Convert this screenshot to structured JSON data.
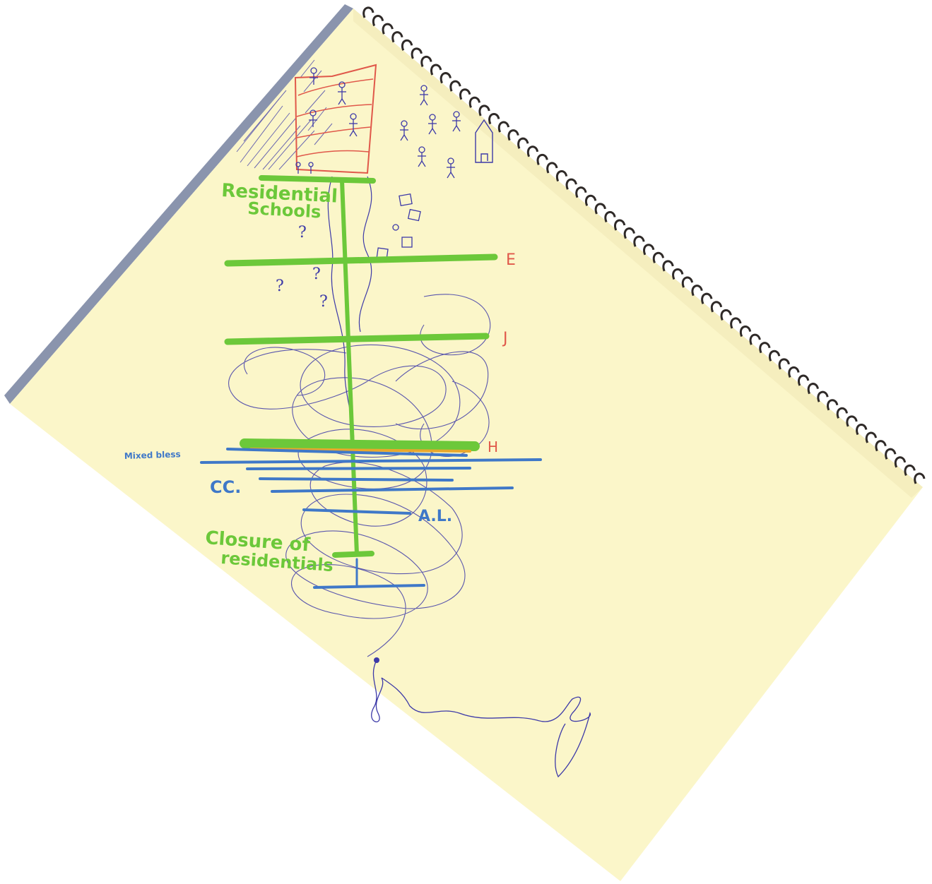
{
  "labels": {
    "residential_line1": "Residential",
    "residential_line2": "Schools",
    "marker_e": "E",
    "marker_j": "J",
    "marker_h": "H",
    "blue_small": "Mixed bless",
    "cc": "CC.",
    "al": "A.L.",
    "closure_line1": "Closure   of",
    "closure_line2": "residentials",
    "question_mark": "?"
  },
  "colors": {
    "paper": "#fbf6c9",
    "page_shadow": "#8a94ad",
    "spiral": "#2f2a28",
    "green_marker": "#6cc83a",
    "blue_marker": "#3f78c8",
    "pen_blue": "#3d3aa8",
    "red_marker": "#e0584a",
    "orange_marker": "#e9a82b"
  }
}
